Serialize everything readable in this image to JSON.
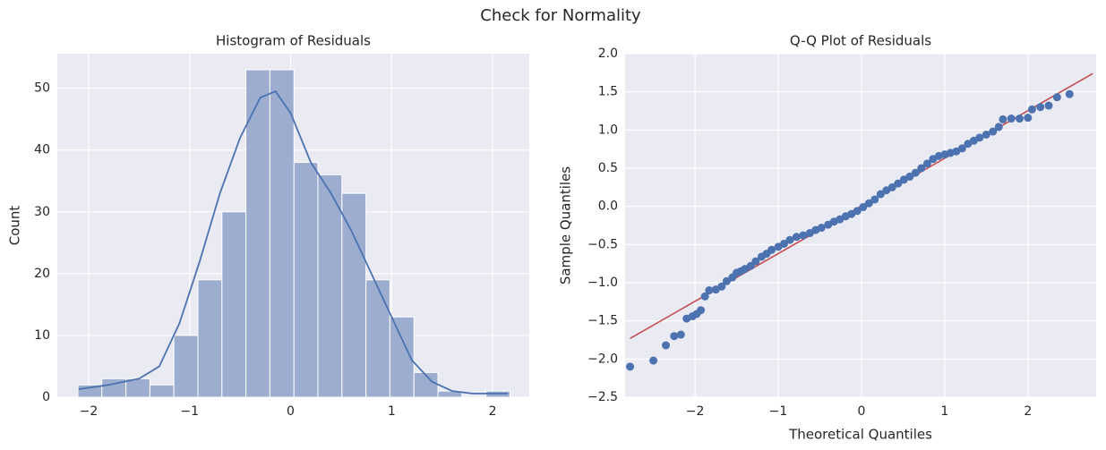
{
  "title": "Check for Normality",
  "chart_data": [
    {
      "type": "histogram",
      "title": "Histogram of Residuals",
      "ylabel": "Count",
      "bins": [
        -2.106,
        -1.869,
        -1.631,
        -1.393,
        -1.156,
        -0.918,
        -0.68,
        -0.443,
        -0.205,
        0.033,
        0.27,
        0.508,
        0.746,
        0.983,
        1.221,
        1.459,
        1.696,
        1.934,
        2.172
      ],
      "counts": [
        2,
        3,
        3,
        2,
        10,
        19,
        30,
        53,
        53,
        38,
        36,
        33,
        19,
        13,
        4,
        1,
        0,
        1
      ],
      "color": "#9dadd0",
      "edgecolor": "#ffffff",
      "kde": {
        "x": [
          -2.1,
          -1.8,
          -1.5,
          -1.3,
          -1.1,
          -0.9,
          -0.7,
          -0.5,
          -0.3,
          -0.15,
          0,
          0.2,
          0.4,
          0.6,
          0.8,
          1.0,
          1.2,
          1.4,
          1.6,
          1.8,
          2.0,
          2.15
        ],
        "y": [
          1.3,
          2.0,
          3.0,
          5,
          12,
          22,
          33,
          42,
          48.5,
          49.5,
          46,
          38,
          33,
          27,
          20,
          13,
          6,
          2.5,
          1,
          0.6,
          0.6,
          0.6
        ],
        "color": "#4c72b0"
      },
      "xlim": [
        -2.31,
        2.363
      ],
      "ylim": [
        0,
        55.6
      ],
      "xticks": [
        {
          "value": -2,
          "label": "−2"
        },
        {
          "value": -1,
          "label": "−1"
        },
        0,
        1,
        2
      ],
      "yticks": [
        0,
        10,
        20,
        30,
        40,
        50
      ],
      "grid": true
    },
    {
      "type": "scatter",
      "title": "Q-Q Plot of Residuals",
      "xlabel": "Theoretical Quantiles",
      "ylabel": "Sample Quantiles",
      "x": [
        -2.78,
        -2.5,
        -2.35,
        -2.25,
        -2.17,
        -2.1,
        -2.03,
        -1.98,
        -1.93,
        -1.88,
        -1.83,
        -1.75,
        -1.68,
        -1.62,
        -1.55,
        -1.5,
        -1.45,
        -1.4,
        -1.33,
        -1.27,
        -1.2,
        -1.14,
        -1.08,
        -1.0,
        -0.93,
        -0.86,
        -0.78,
        -0.7,
        -0.62,
        -0.55,
        -0.48,
        -0.4,
        -0.33,
        -0.26,
        -0.19,
        -0.12,
        -0.05,
        0.02,
        0.09,
        0.16,
        0.23,
        0.3,
        0.37,
        0.44,
        0.51,
        0.58,
        0.65,
        0.72,
        0.79,
        0.86,
        0.93,
        1.0,
        1.07,
        1.14,
        1.21,
        1.28,
        1.35,
        1.42,
        1.5,
        1.58,
        1.65,
        1.7,
        1.8,
        1.9,
        2.0,
        2.05,
        2.15,
        2.25,
        2.35,
        2.5
      ],
      "y": [
        -2.1,
        -2.02,
        -1.82,
        -1.7,
        -1.68,
        -1.47,
        -1.44,
        -1.41,
        -1.36,
        -1.18,
        -1.1,
        -1.09,
        -1.05,
        -0.98,
        -0.93,
        -0.87,
        -0.85,
        -0.82,
        -0.78,
        -0.72,
        -0.66,
        -0.62,
        -0.57,
        -0.53,
        -0.49,
        -0.44,
        -0.4,
        -0.38,
        -0.35,
        -0.31,
        -0.28,
        -0.24,
        -0.2,
        -0.17,
        -0.13,
        -0.1,
        -0.06,
        -0.01,
        0.04,
        0.09,
        0.16,
        0.21,
        0.25,
        0.3,
        0.35,
        0.39,
        0.44,
        0.5,
        0.56,
        0.62,
        0.66,
        0.68,
        0.7,
        0.72,
        0.76,
        0.82,
        0.86,
        0.9,
        0.94,
        0.98,
        1.04,
        1.14,
        1.15,
        1.15,
        1.16,
        1.27,
        1.3,
        1.32,
        1.43,
        1.47
      ],
      "color": "#4c72b0",
      "line": {
        "x": [
          -2.78,
          2.78
        ],
        "y": [
          -1.73,
          1.74
        ],
        "color": "#c44e52"
      },
      "xlim": [
        -2.84,
        2.82
      ],
      "ylim": [
        -2.5,
        2.0
      ],
      "xticks": [
        {
          "value": -2,
          "label": "−2"
        },
        {
          "value": -1,
          "label": "−1"
        },
        0,
        1,
        2
      ],
      "yticks": [
        {
          "value": -2.5,
          "label": "−2.5"
        },
        {
          "value": -2,
          "label": "−2.0"
        },
        {
          "value": -1.5,
          "label": "−1.5"
        },
        {
          "value": -1,
          "label": "−1.0"
        },
        {
          "value": -0.5,
          "label": "−0.5"
        },
        {
          "value": 0,
          "label": "0.0"
        },
        {
          "value": 0.5,
          "label": "0.5"
        },
        {
          "value": 1,
          "label": "1.0"
        },
        {
          "value": 1.5,
          "label": "1.5"
        },
        {
          "value": 2,
          "label": "2.0"
        }
      ],
      "grid": true
    }
  ]
}
